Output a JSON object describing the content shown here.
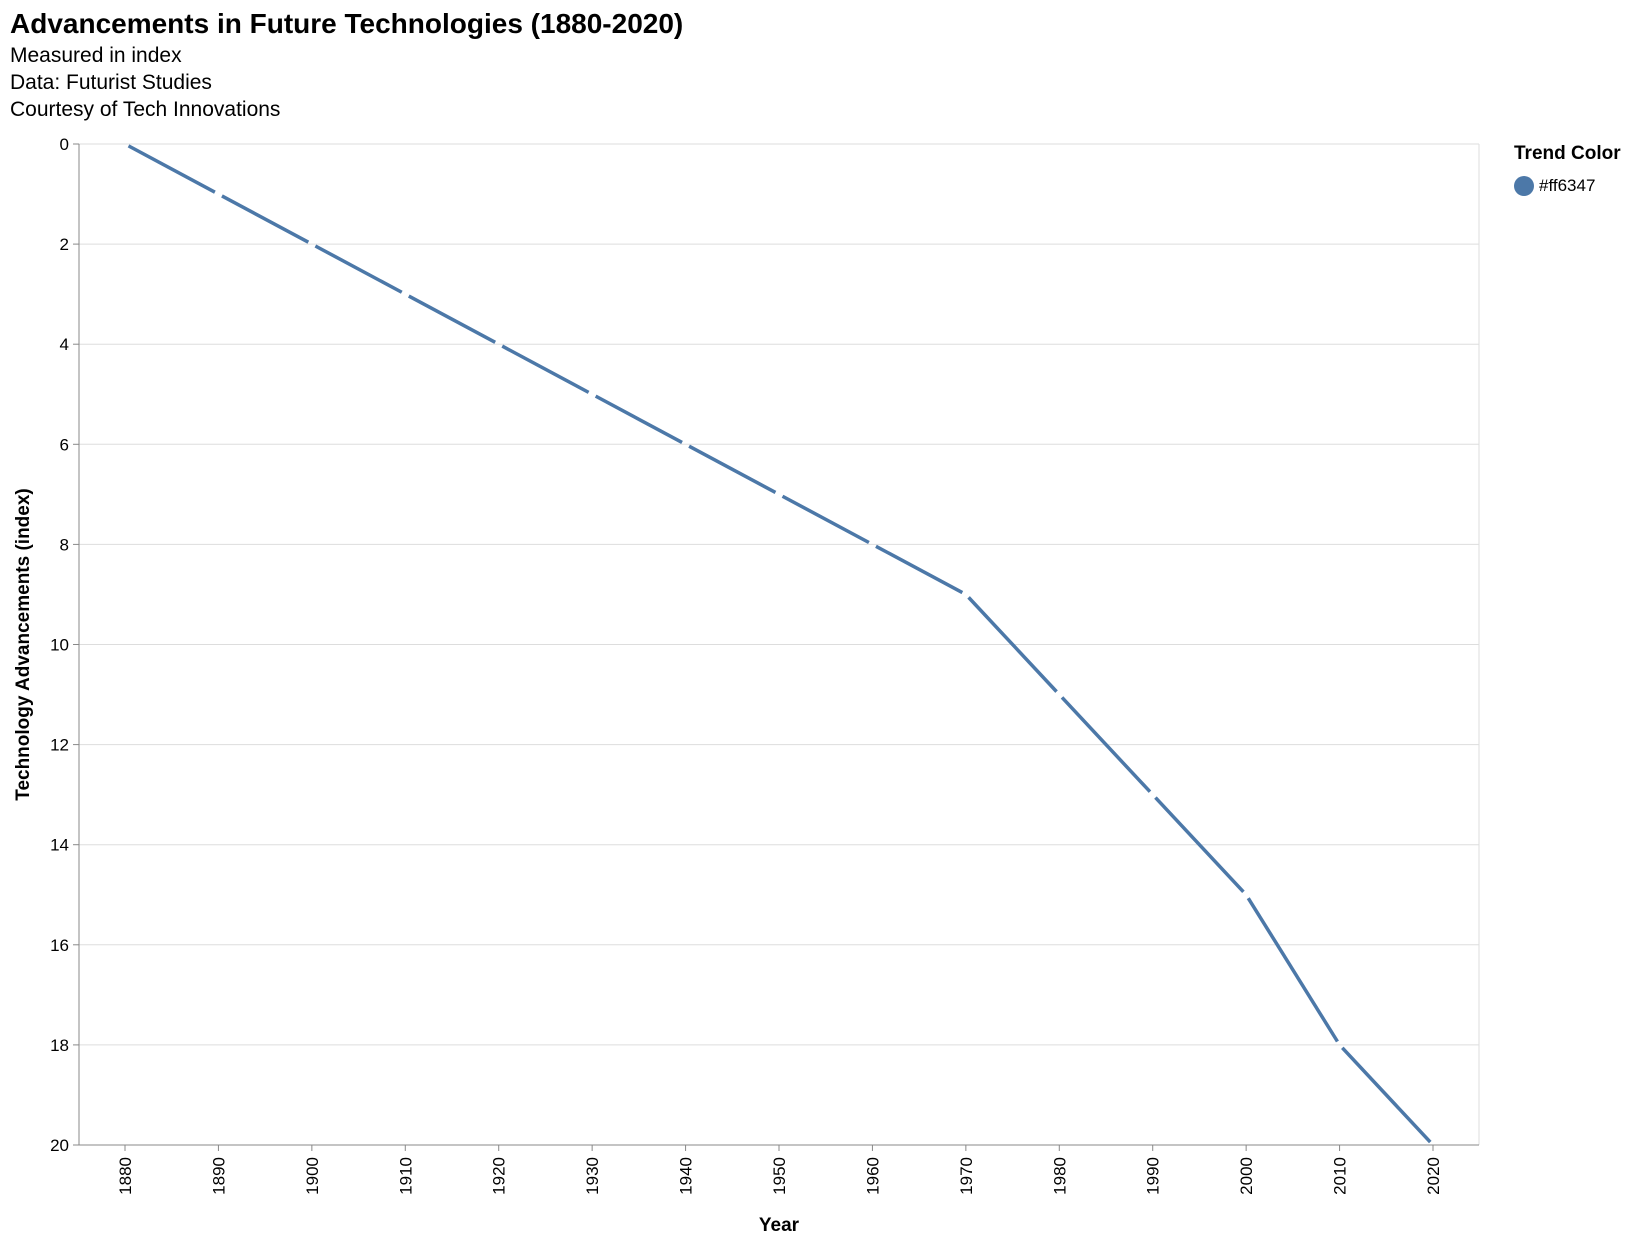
{
  "chart_data": {
    "type": "line",
    "title": "Advancements in Future Technologies (1880-2020)",
    "subtitle": [
      "Measured in index",
      "Data: Futurist Studies",
      "Courtesy of Tech Innovations"
    ],
    "xlabel": "Year",
    "ylabel": "Technology Advancements (index)",
    "x": [
      1880,
      1890,
      1900,
      1910,
      1920,
      1930,
      1940,
      1950,
      1960,
      1970,
      1980,
      1990,
      2000,
      2010,
      2020
    ],
    "series": [
      {
        "values": [
          0,
          1,
          2,
          3,
          4,
          5,
          6,
          7,
          8,
          9,
          11,
          13,
          15,
          18,
          20
        ]
      }
    ],
    "ylim": [
      0,
      20
    ],
    "y_reversed": true,
    "yticks": [
      0,
      2,
      4,
      6,
      8,
      10,
      12,
      14,
      16,
      18,
      20
    ],
    "grid": true,
    "legend": {
      "title": "Trend Color",
      "entries": [
        "#ff6347"
      ],
      "placement": "top-right"
    },
    "line_color": "#4c78a8"
  }
}
